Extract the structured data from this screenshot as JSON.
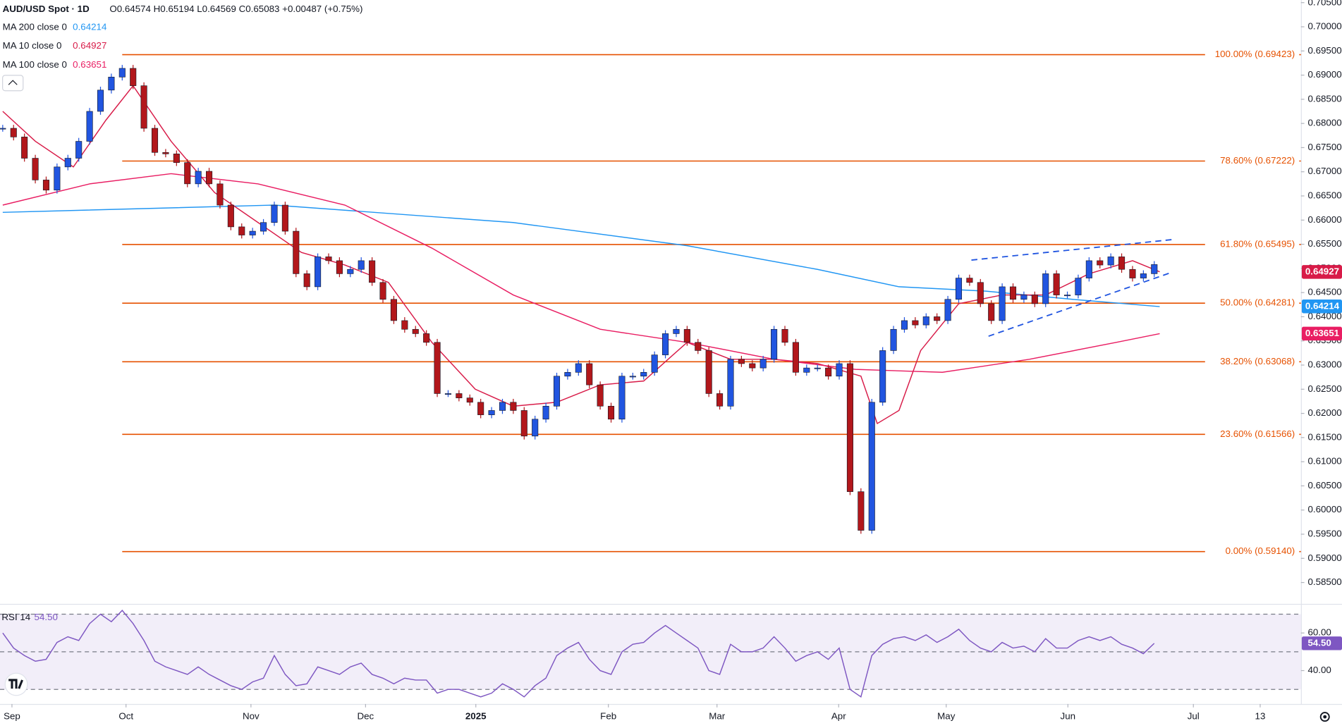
{
  "header": {
    "symbol": "AUD/USD Spot · 1D",
    "ohlc": "O0.64574 H0.65194 L0.64569 C0.65083 +0.00487 (+0.75%)"
  },
  "chart_data": [
    {
      "type": "candlestick",
      "up_color": "#2155e0",
      "down_color": "#b2171b",
      "xlim": [
        -0.5,
        239
      ],
      "ylim": [
        0.58075,
        0.70553
      ],
      "xticks": [
        {
          "value": 1.7,
          "label": "Sep"
        },
        {
          "value": 22.7,
          "label": "Oct"
        },
        {
          "value": 45.7,
          "label": "Nov"
        },
        {
          "value": 66.8,
          "label": "Dec"
        },
        {
          "value": 87.1,
          "label": "2025"
        },
        {
          "value": 111.5,
          "label": "Feb"
        },
        {
          "value": 131.5,
          "label": "Mar"
        },
        {
          "value": 153.9,
          "label": "Apr"
        },
        {
          "value": 173.7,
          "label": "May"
        },
        {
          "value": 196.1,
          "label": "Jun"
        },
        {
          "value": 219.2,
          "label": "Jul"
        },
        {
          "value": 231.5,
          "label": "13"
        }
      ],
      "yticks": [
        {
          "value": 0.585,
          "label": "0.58500"
        },
        {
          "value": 0.59,
          "label": "0.59000"
        },
        {
          "value": 0.595,
          "label": "0.59500"
        },
        {
          "value": 0.6,
          "label": "0.60000"
        },
        {
          "value": 0.605,
          "label": "0.60500"
        },
        {
          "value": 0.61,
          "label": "0.61000"
        },
        {
          "value": 0.615,
          "label": "0.61500"
        },
        {
          "value": 0.62,
          "label": "0.62000"
        },
        {
          "value": 0.625,
          "label": "0.62500"
        },
        {
          "value": 0.63,
          "label": "0.63000"
        },
        {
          "value": 0.635,
          "label": "0.63500"
        },
        {
          "value": 0.64,
          "label": "0.64000"
        },
        {
          "value": 0.645,
          "label": "0.64500"
        },
        {
          "value": 0.65,
          "label": "0.65000"
        },
        {
          "value": 0.655,
          "label": "0.65500"
        },
        {
          "value": 0.66,
          "label": "0.66000"
        },
        {
          "value": 0.665,
          "label": "0.66500"
        },
        {
          "value": 0.67,
          "label": "0.67000"
        },
        {
          "value": 0.675,
          "label": "0.67500"
        },
        {
          "value": 0.68,
          "label": "0.68000"
        },
        {
          "value": 0.685,
          "label": "0.68500"
        },
        {
          "value": 0.69,
          "label": "0.69000"
        },
        {
          "value": 0.695,
          "label": "0.69500"
        },
        {
          "value": 0.7,
          "label": "0.70000"
        },
        {
          "value": 0.705,
          "label": "0.70500"
        }
      ],
      "x": [
        0,
        2,
        4,
        6,
        8,
        10,
        12,
        14,
        16,
        18,
        20,
        22,
        24,
        26,
        28,
        30,
        32,
        34,
        36,
        38,
        40,
        42,
        44,
        46,
        48,
        50,
        52,
        54,
        56,
        58,
        60,
        62,
        64,
        66,
        68,
        70,
        72,
        74,
        76,
        78,
        80,
        82,
        84,
        86,
        88,
        90,
        92,
        94,
        96,
        98,
        100,
        102,
        104,
        106,
        108,
        110,
        112,
        114,
        116,
        118,
        120,
        122,
        124,
        126,
        128,
        130,
        132,
        134,
        136,
        138,
        140,
        142,
        144,
        146,
        148,
        150,
        152,
        154,
        156,
        158,
        160,
        162,
        164,
        166,
        168,
        170,
        172,
        174,
        176,
        178,
        180,
        182,
        184,
        186,
        188,
        190,
        192,
        194,
        196,
        198,
        200,
        202,
        204,
        206,
        208,
        210,
        212
      ],
      "close": [
        0.679,
        0.6772,
        0.6728,
        0.6683,
        0.6662,
        0.671,
        0.6728,
        0.6763,
        0.6825,
        0.6869,
        0.6896,
        0.6914,
        0.6878,
        0.679,
        0.674,
        0.6737,
        0.6719,
        0.6675,
        0.6701,
        0.6675,
        0.6631,
        0.6586,
        0.6569,
        0.6577,
        0.6595,
        0.6631,
        0.6577,
        0.6489,
        0.6462,
        0.6524,
        0.6516,
        0.6489,
        0.6498,
        0.6516,
        0.6471,
        0.6436,
        0.6392,
        0.6374,
        0.6365,
        0.6347,
        0.6241,
        0.6241,
        0.6232,
        0.6223,
        0.6197,
        0.6206,
        0.6223,
        0.6206,
        0.6153,
        0.6188,
        0.6215,
        0.6277,
        0.6285,
        0.6303,
        0.6259,
        0.6215,
        0.6188,
        0.6277,
        0.6277,
        0.6285,
        0.6321,
        0.6365,
        0.6374,
        0.6347,
        0.633,
        0.6241,
        0.6215,
        0.6312,
        0.6303,
        0.6294,
        0.6312,
        0.6374,
        0.6347,
        0.6285,
        0.6294,
        0.6294,
        0.6277,
        0.6303,
        0.6038,
        0.5958,
        0.6223,
        0.633,
        0.6374,
        0.6392,
        0.6383,
        0.64,
        0.6392,
        0.6436,
        0.648,
        0.6471,
        0.6427,
        0.6392,
        0.6462,
        0.6436,
        0.6445,
        0.6427,
        0.6489,
        0.6445,
        0.6445,
        0.648,
        0.6516,
        0.6507,
        0.6524,
        0.6498,
        0.648,
        0.6489,
        0.6508
      ],
      "series": [
        {
          "name": "MA 200 close 0",
          "legend_value": 0.64214,
          "color": "#2196f3",
          "tag_text_color": "#ffffff",
          "x": [
            0,
            50,
            94,
            126,
            150,
            165,
            181,
            197,
            213
          ],
          "values": [
            0.6616,
            0.6631,
            0.6595,
            0.6547,
            0.6498,
            0.6462,
            0.6453,
            0.6436,
            0.6421
          ]
        },
        {
          "name": "MA 10 close 0",
          "legend_value": 0.64927,
          "color": "#d81b48",
          "tag_text_color": "#ffffff",
          "x": [
            0,
            6,
            13,
            19,
            24,
            31,
            39,
            47,
            55,
            63,
            71,
            79,
            87,
            94,
            102,
            110,
            118,
            126,
            134,
            142,
            150,
            158,
            161,
            165,
            169,
            176,
            184,
            192,
            200,
            208,
            213
          ],
          "values": [
            0.6825,
            0.6763,
            0.671,
            0.6807,
            0.6878,
            0.6763,
            0.6657,
            0.6595,
            0.6533,
            0.6507,
            0.6471,
            0.6347,
            0.625,
            0.6215,
            0.6223,
            0.6259,
            0.6267,
            0.6347,
            0.6312,
            0.6312,
            0.6303,
            0.6277,
            0.6179,
            0.6206,
            0.633,
            0.6427,
            0.6445,
            0.6445,
            0.6489,
            0.6516,
            0.6493
          ]
        },
        {
          "name": "MA 100 close 0",
          "legend_value": 0.63651,
          "color": "#e91e63",
          "tag_text_color": "#ffffff",
          "x": [
            0,
            16,
            31,
            47,
            63,
            79,
            94,
            110,
            126,
            142,
            157,
            173,
            189,
            205,
            213
          ],
          "values": [
            0.6631,
            0.6675,
            0.6696,
            0.6675,
            0.6631,
            0.6542,
            0.6445,
            0.6374,
            0.6347,
            0.6312,
            0.6291,
            0.6285,
            0.6312,
            0.6347,
            0.6365
          ]
        }
      ],
      "fib_color": "#e65100",
      "fib_levels": [
        {
          "label": "100.00% (0.69423)",
          "value": 0.69423
        },
        {
          "label": "78.60% (0.67222)",
          "value": 0.67222
        },
        {
          "label": "61.80% (0.65495)",
          "value": 0.65495
        },
        {
          "label": "50.00% (0.64281)",
          "value": 0.64281
        },
        {
          "label": "38.20% (0.63068)",
          "value": 0.63068
        },
        {
          "label": "23.60% (0.61566)",
          "value": 0.61566
        },
        {
          "label": "0.00% (0.59140)",
          "value": 0.5914
        }
      ]
    },
    {
      "type": "line",
      "name": "RSI 14",
      "value": 54.5,
      "value_label": "54.50",
      "color": "#7e57c2",
      "ylim": [
        22.7,
        75
      ],
      "yticks": [
        {
          "value": 60,
          "label": "60.00"
        },
        {
          "value": 40,
          "label": "40.00"
        }
      ],
      "bands": [
        30,
        50,
        70
      ],
      "x": [
        0,
        2,
        4,
        6,
        8,
        10,
        12,
        14,
        16,
        18,
        20,
        22,
        24,
        26,
        28,
        30,
        32,
        34,
        36,
        38,
        40,
        42,
        44,
        46,
        48,
        50,
        52,
        54,
        56,
        58,
        60,
        62,
        64,
        66,
        68,
        70,
        72,
        74,
        76,
        78,
        80,
        82,
        84,
        86,
        88,
        90,
        92,
        94,
        96,
        98,
        100,
        102,
        104,
        106,
        108,
        110,
        112,
        114,
        116,
        118,
        120,
        122,
        124,
        126,
        128,
        130,
        132,
        134,
        136,
        138,
        140,
        142,
        144,
        146,
        148,
        150,
        152,
        154,
        156,
        158,
        160,
        162,
        164,
        166,
        168,
        170,
        172,
        174,
        176,
        178,
        180,
        182,
        184,
        186,
        188,
        190,
        192,
        194,
        196,
        198,
        200,
        202,
        204,
        206,
        208,
        210,
        212
      ],
      "values": [
        60,
        52,
        48,
        45,
        46,
        55,
        58,
        56,
        65,
        70,
        66,
        72,
        65,
        56,
        45,
        42,
        40,
        38,
        42,
        38,
        35,
        32,
        30,
        34,
        36,
        48,
        38,
        32,
        33,
        42,
        40,
        38,
        42,
        44,
        38,
        36,
        33,
        36,
        35,
        35,
        28,
        30,
        30,
        28,
        26,
        28,
        33,
        30,
        26,
        32,
        36,
        48,
        52,
        55,
        46,
        40,
        38,
        50,
        54,
        55,
        60,
        64,
        60,
        56,
        52,
        40,
        38,
        54,
        50,
        50,
        52,
        58,
        52,
        45,
        48,
        50,
        46,
        52,
        30,
        26,
        48,
        54,
        57,
        58,
        56,
        59,
        55,
        58,
        62,
        56,
        52,
        50,
        55,
        52,
        53,
        50,
        57,
        52,
        52,
        56,
        58,
        56,
        58,
        54,
        52,
        49,
        54.5
      ]
    }
  ]
}
